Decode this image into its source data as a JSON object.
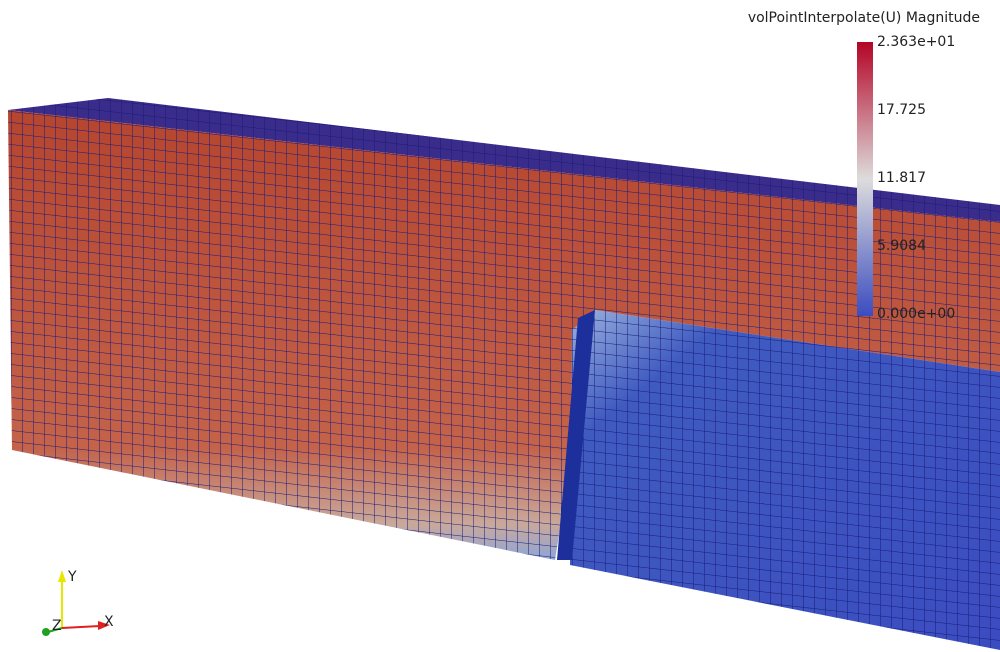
{
  "legend": {
    "title": "volPointInterpolate(U) Magnitude",
    "labels": [
      "2.363e+01",
      "17.725",
      "11.817",
      "5.9084",
      "0.000e+00"
    ]
  },
  "axes": {
    "labels": [
      "Y",
      "Z",
      "X"
    ]
  }
}
